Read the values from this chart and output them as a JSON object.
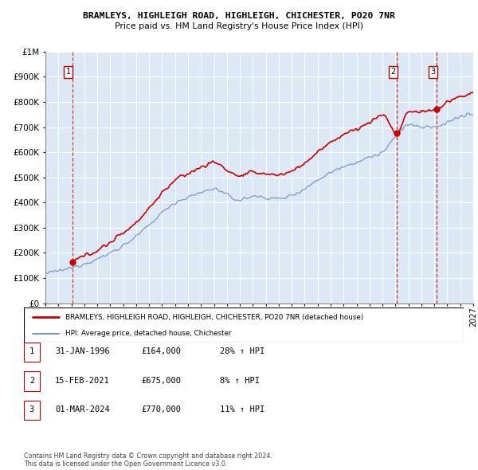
{
  "title1": "BRAMLEYS, HIGHLEIGH ROAD, HIGHLEIGH, CHICHESTER, PO20 7NR",
  "title2": "Price paid vs. HM Land Registry's House Price Index (HPI)",
  "yticks": [
    0,
    100000,
    200000,
    300000,
    400000,
    500000,
    600000,
    700000,
    800000,
    900000,
    1000000
  ],
  "xlim": [
    1994.0,
    2027.0
  ],
  "ylim": [
    0,
    1000000
  ],
  "legend_line1": "BRAMLEYS, HIGHLEIGH ROAD, HIGHLEIGH, CHICHESTER, PO20 7NR (detached house)",
  "legend_line2": "HPI: Average price, detached house, Chichester",
  "sale_points": [
    {
      "date": 1996.08,
      "price": 164000,
      "label": "1"
    },
    {
      "date": 2021.12,
      "price": 675000,
      "label": "2"
    },
    {
      "date": 2024.17,
      "price": 770000,
      "label": "3"
    }
  ],
  "table_rows": [
    {
      "num": "1",
      "date": "31-JAN-1996",
      "price": "£164,000",
      "hpi": "28% ↑ HPI"
    },
    {
      "num": "2",
      "date": "15-FEB-2021",
      "price": "£675,000",
      "hpi": "8% ↑ HPI"
    },
    {
      "num": "3",
      "date": "01-MAR-2024",
      "price": "£770,000",
      "hpi": "11% ↑ HPI"
    }
  ],
  "footnote": "Contains HM Land Registry data © Crown copyright and database right 2024.\nThis data is licensed under the Open Government Licence v3.0.",
  "red_color": "#cc0000",
  "blue_color": "#7799cc",
  "bg_color": "#dce8f5",
  "grid_color": "#b0c8e0",
  "sale_vline_color": "#cc0000"
}
